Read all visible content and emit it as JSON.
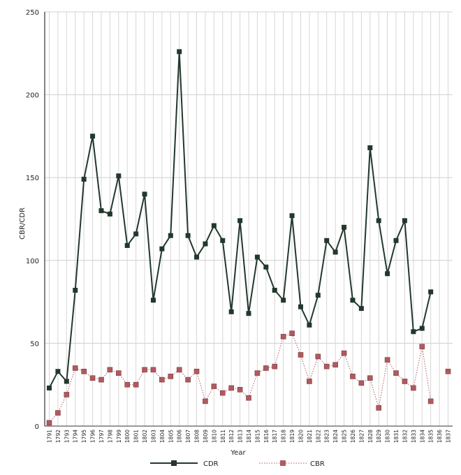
{
  "chart_data": {
    "type": "line",
    "xlabel": "Year",
    "ylabel": "CBR/CDR",
    "ylim": [
      0,
      250
    ],
    "yticks": [
      0,
      50,
      100,
      150,
      200,
      250
    ],
    "grid": true,
    "legend_position": "bottom",
    "x": [
      "1791",
      "1792",
      "1793",
      "1794",
      "1795",
      "1796",
      "1797",
      "1798",
      "1799",
      "1800",
      "1801",
      "1802",
      "1803",
      "1804",
      "1805",
      "1806",
      "1807",
      "1808",
      "1809",
      "1810",
      "1811",
      "1812",
      "1813",
      "1814",
      "1815",
      "1816",
      "1817",
      "1818",
      "1819",
      "1820",
      "1821",
      "1822",
      "1823",
      "1824",
      "1825",
      "1826",
      "1827",
      "1828",
      "1829",
      "1830",
      "1831",
      "1832",
      "1833",
      "1834",
      "1835",
      "1836",
      "1837"
    ],
    "series": [
      {
        "name": "CDR",
        "color": "#22382c",
        "style": "solid",
        "values": [
          23,
          33,
          27,
          82,
          149,
          175,
          130,
          128,
          151,
          109,
          116,
          140,
          76,
          107,
          115,
          226,
          115,
          102,
          110,
          121,
          112,
          69,
          124,
          68,
          102,
          96,
          82,
          76,
          127,
          72,
          61,
          79,
          112,
          105,
          120,
          76,
          71,
          168,
          124,
          92,
          112,
          124,
          57,
          59,
          81,
          null,
          null
        ]
      },
      {
        "name": "CBR",
        "color": "#b05a5f",
        "style": "dotted",
        "values": [
          2,
          8,
          19,
          35,
          33,
          29,
          28,
          34,
          32,
          25,
          25,
          34,
          34,
          28,
          30,
          34,
          28,
          33,
          15,
          24,
          20,
          23,
          22,
          17,
          32,
          35,
          36,
          54,
          56,
          43,
          27,
          42,
          36,
          37,
          44,
          30,
          26,
          29,
          11,
          40,
          32,
          27,
          23,
          48,
          15,
          null,
          33
        ]
      }
    ]
  }
}
